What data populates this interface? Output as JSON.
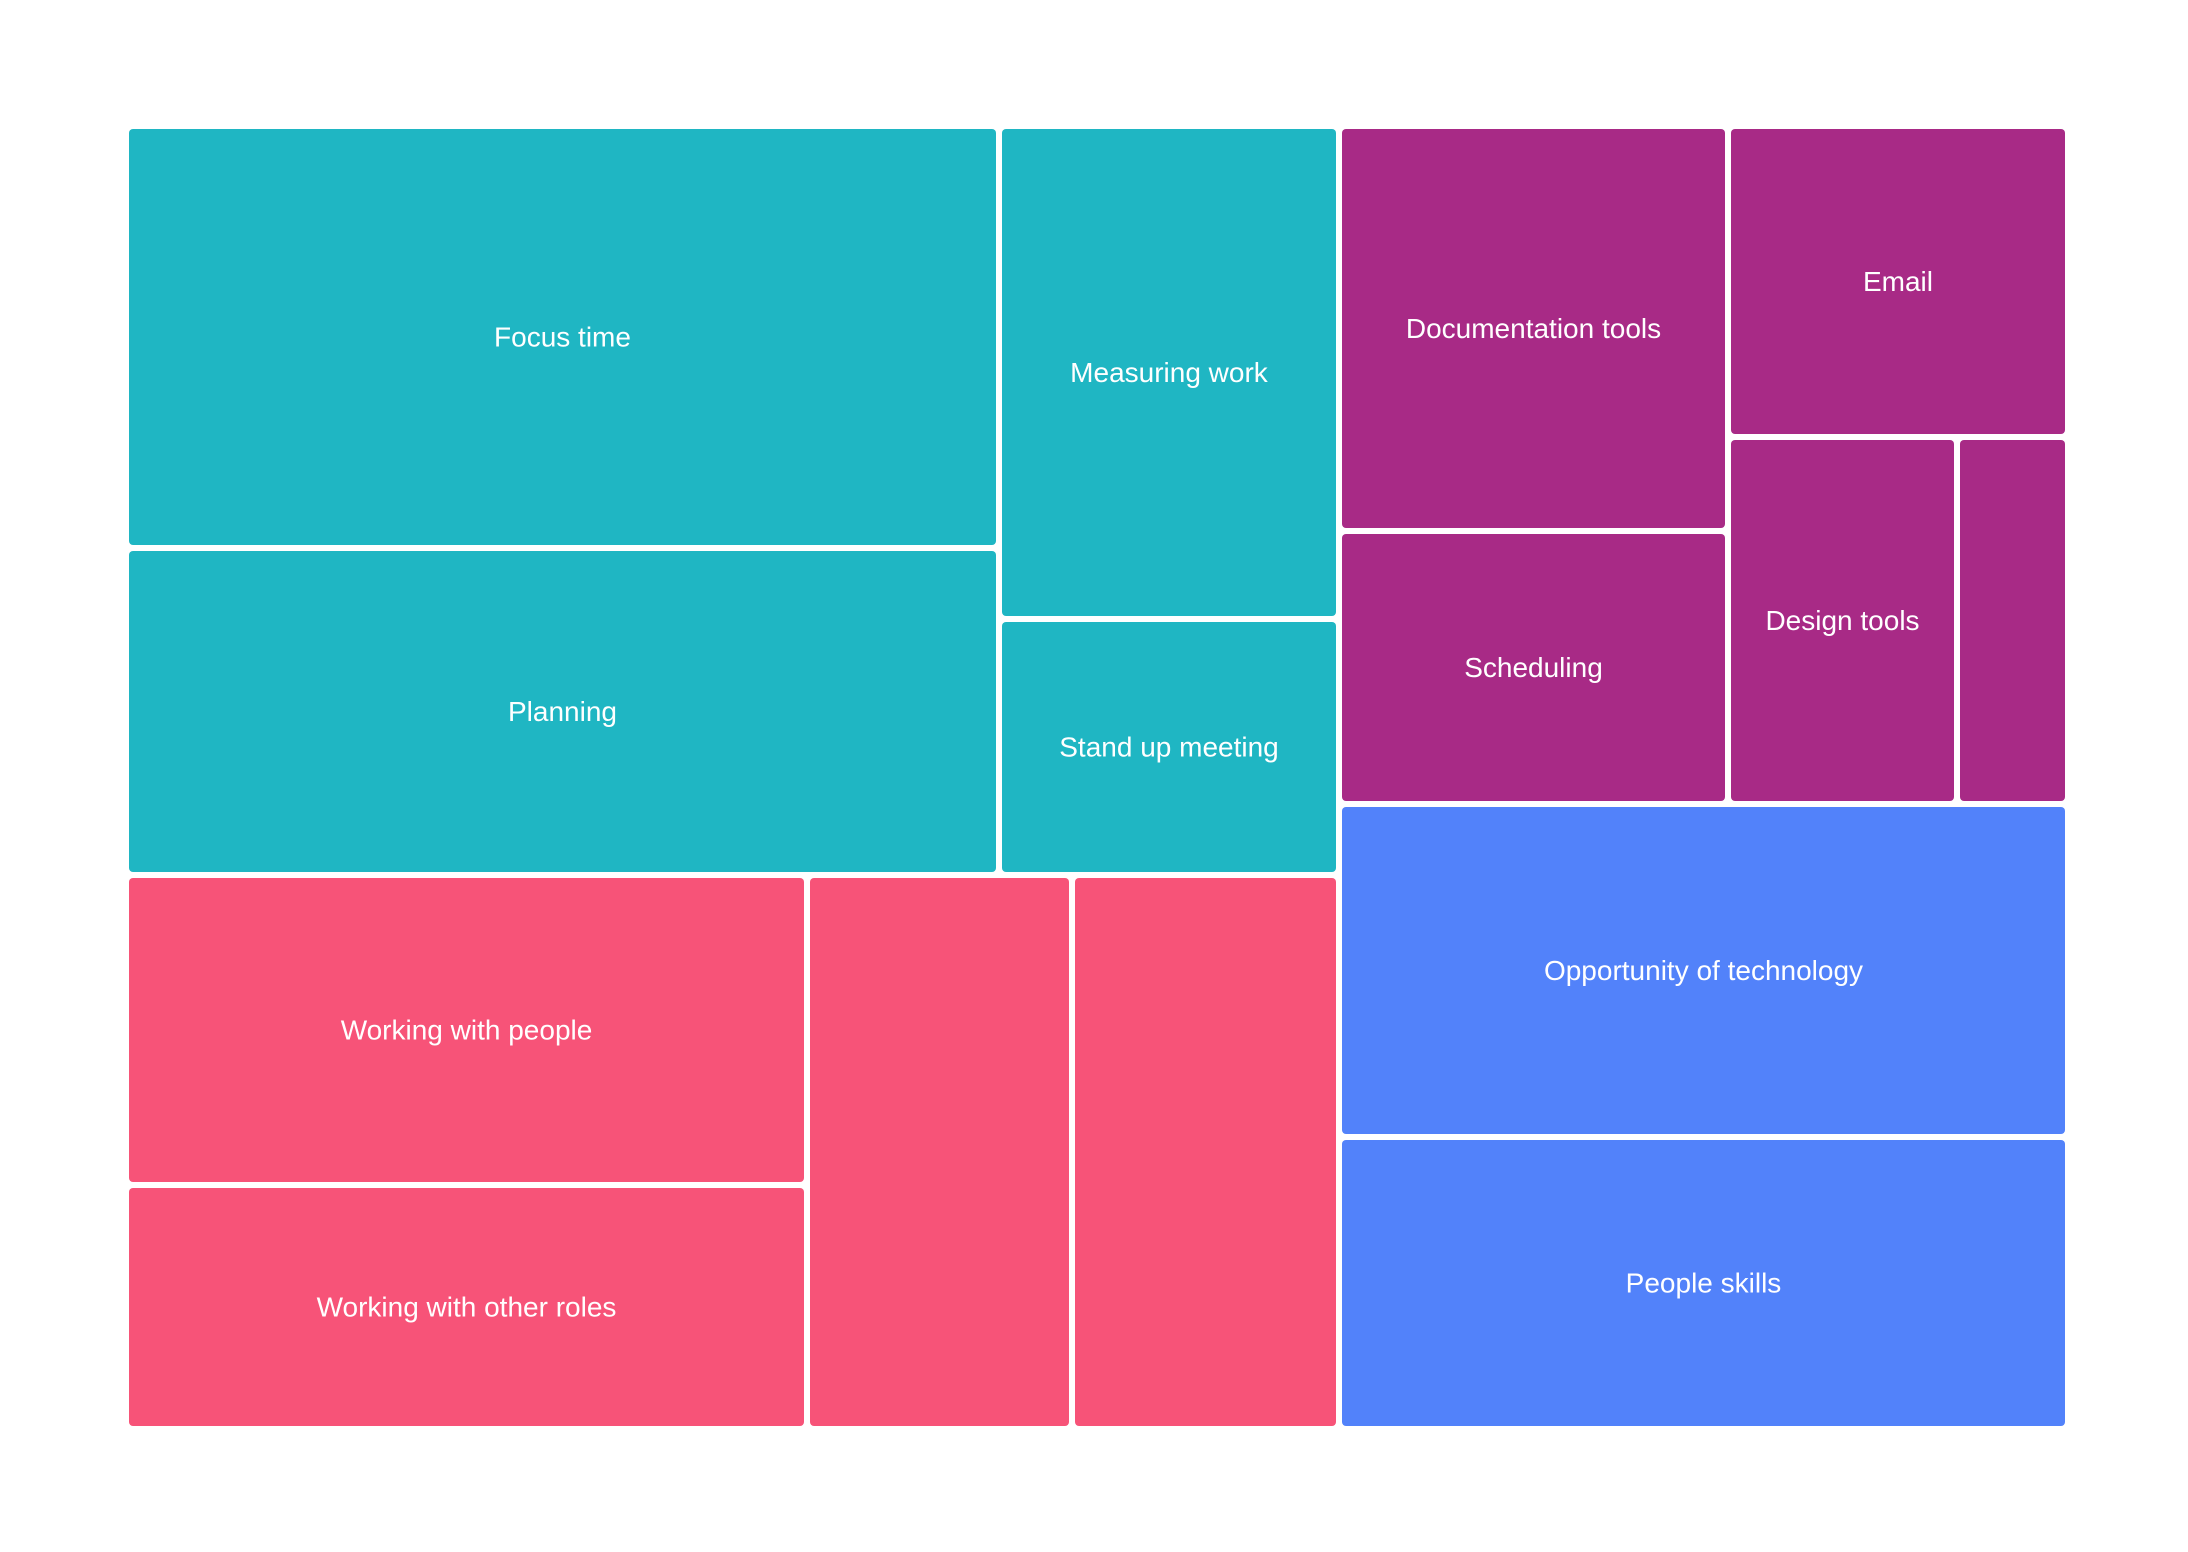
{
  "chart_data": {
    "type": "treemap",
    "title": "",
    "colors": {
      "teal": "#1fb6c3",
      "magenta": "#a82a86",
      "pink": "#f75378",
      "blue": "#5282fa"
    },
    "tiles": [
      {
        "label": "Focus time",
        "color": "#1fb6c3"
      },
      {
        "label": "Planning",
        "color": "#1fb6c3"
      },
      {
        "label": "Measuring work",
        "color": "#1fb6c3"
      },
      {
        "label": "Stand up meeting",
        "color": "#1fb6c3"
      },
      {
        "label": "Documentation tools",
        "color": "#a82a86"
      },
      {
        "label": "Email",
        "color": "#a82a86"
      },
      {
        "label": "Scheduling",
        "color": "#a82a86"
      },
      {
        "label": "Design tools",
        "color": "#a82a86"
      },
      {
        "label": "",
        "color": "#a82a86"
      },
      {
        "label": "Working with people",
        "color": "#f75378"
      },
      {
        "label": "Working with other roles",
        "color": "#f75378"
      },
      {
        "label": "",
        "color": "#f75378"
      },
      {
        "label": "",
        "color": "#f75378"
      },
      {
        "label": "Opportunity of technology",
        "color": "#5282fa"
      },
      {
        "label": "People skills",
        "color": "#5282fa"
      }
    ]
  }
}
